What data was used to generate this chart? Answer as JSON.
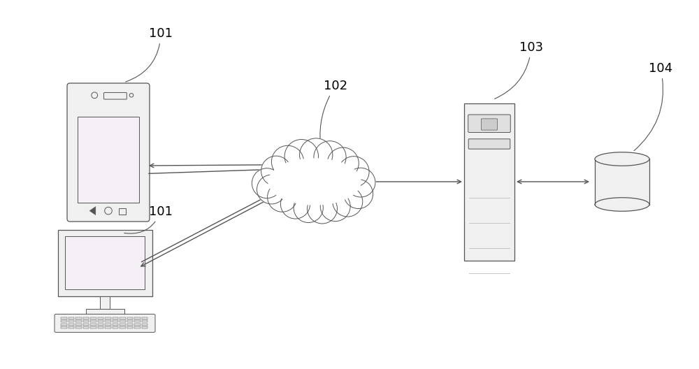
{
  "bg_color": "#ffffff",
  "label_101_top": "101",
  "label_101_bottom": "101",
  "label_102": "102",
  "label_103": "103",
  "label_104": "104",
  "figsize": [
    10.0,
    5.28
  ],
  "dpi": 100,
  "line_color": "#555555",
  "fill_light": "#f0f0f0",
  "fill_med": "#e0e0e0",
  "screen_pink": "#f5f0f5"
}
